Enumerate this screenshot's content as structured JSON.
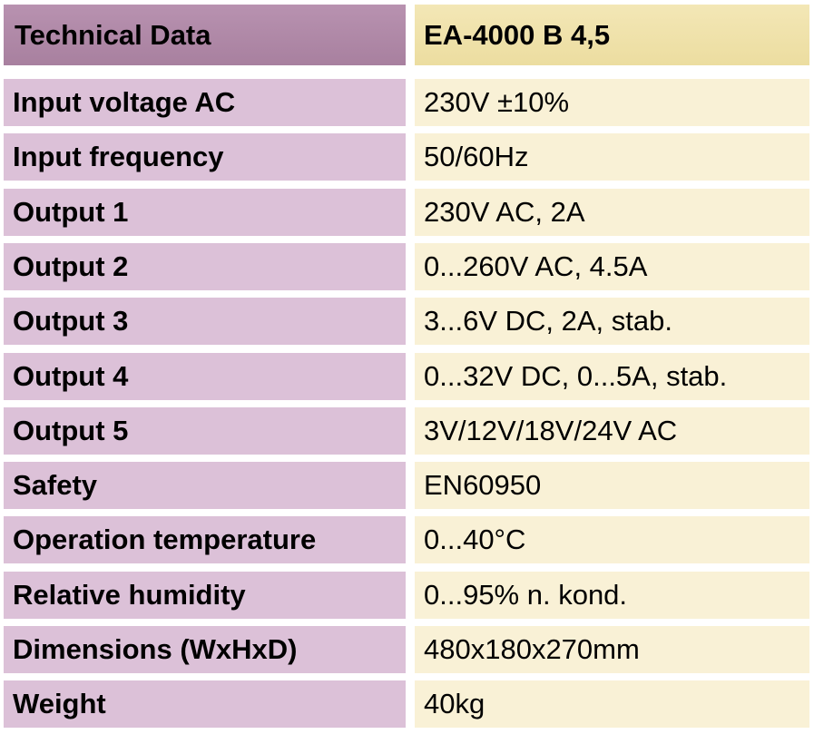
{
  "header": {
    "title": "Technical Data",
    "model": "EA-4000 B 4,5"
  },
  "table": {
    "rows": [
      [
        "Input voltage AC",
        "230V ±10%"
      ],
      [
        "Input frequency",
        "50/60Hz"
      ],
      [
        "Output 1",
        "230V AC, 2A"
      ],
      [
        "Output 2",
        "0...260V AC, 4.5A"
      ],
      [
        "Output 3",
        "3...6V DC, 2A, stab."
      ],
      [
        "Output 4",
        "0...32V DC, 0...5A, stab."
      ],
      [
        "Output 5",
        "3V/12V/18V/24V AC"
      ],
      [
        "Safety",
        "EN60950"
      ],
      [
        "Operation temperature",
        "0...40°C"
      ],
      [
        "Relative humidity",
        "0...95% n. kond."
      ],
      [
        "Dimensions (WxHxD)",
        "480x180x270mm"
      ],
      [
        "Weight",
        "40kg"
      ]
    ]
  }
}
